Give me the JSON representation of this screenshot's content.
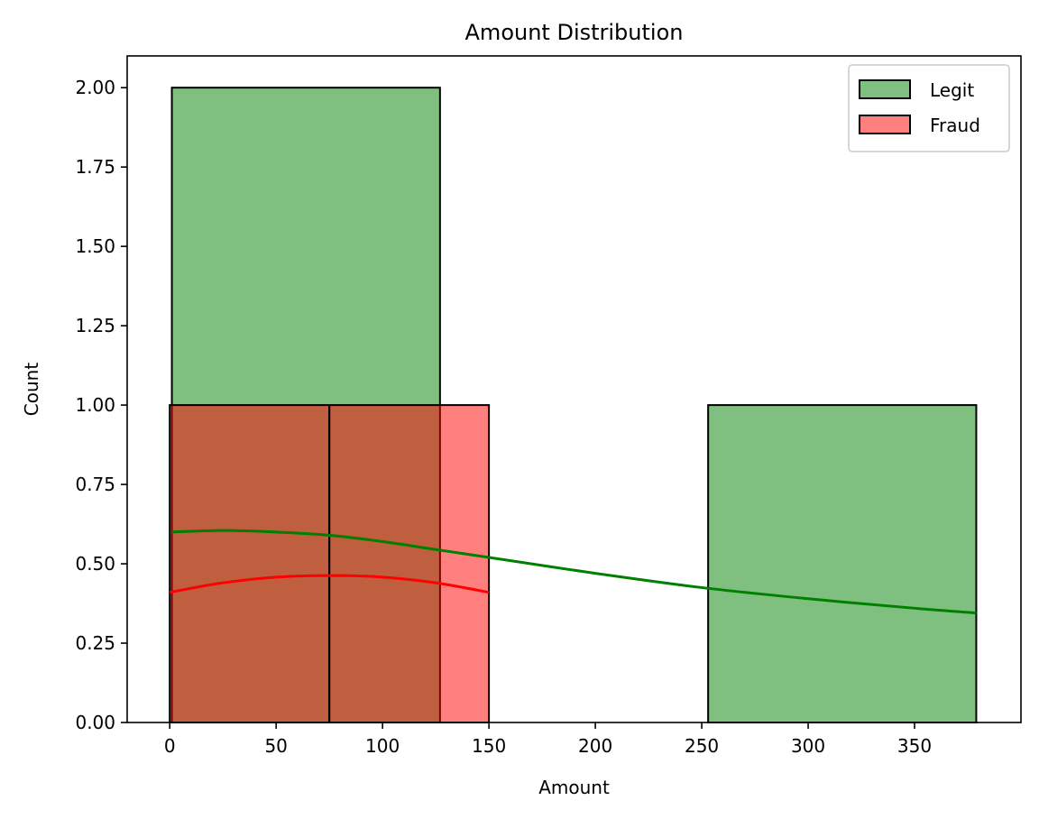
{
  "chart_data": {
    "type": "bar",
    "subtype": "histogram-with-kde",
    "title": "Amount Distribution",
    "xlabel": "Amount",
    "ylabel": "Count",
    "xlim": [
      -20,
      400
    ],
    "ylim": [
      0,
      2.1
    ],
    "xticks": [
      0,
      50,
      100,
      150,
      200,
      250,
      300,
      350
    ],
    "yticks": [
      0,
      0.25,
      0.5,
      0.75,
      1.0,
      1.25,
      1.5,
      1.75,
      2.0
    ],
    "ytick_labels": [
      "0.00",
      "0.25",
      "0.50",
      "0.75",
      "1.00",
      "1.25",
      "1.50",
      "1.75",
      "2.00"
    ],
    "legend_position": "top-right",
    "grid": false,
    "series": [
      {
        "name": "Legit",
        "color": "#008000",
        "bar_alpha": 0.5,
        "bins": [
          {
            "x0": 1,
            "x1": 127,
            "count": 2
          },
          {
            "x0": 127,
            "x1": 253,
            "count": 0
          },
          {
            "x0": 253,
            "x1": 379,
            "count": 1
          }
        ],
        "kde": [
          [
            1,
            0.6
          ],
          [
            25,
            0.605
          ],
          [
            50,
            0.6
          ],
          [
            75,
            0.59
          ],
          [
            100,
            0.57
          ],
          [
            125,
            0.545
          ],
          [
            150,
            0.52
          ],
          [
            200,
            0.47
          ],
          [
            250,
            0.425
          ],
          [
            300,
            0.39
          ],
          [
            350,
            0.36
          ],
          [
            379,
            0.345
          ]
        ]
      },
      {
        "name": "Fraud",
        "color": "#ff0000",
        "bar_alpha": 0.5,
        "bins": [
          {
            "x0": 0,
            "x1": 75,
            "count": 1
          },
          {
            "x0": 75,
            "x1": 150,
            "count": 1
          }
        ],
        "kde": [
          [
            0,
            0.41
          ],
          [
            25,
            0.44
          ],
          [
            50,
            0.458
          ],
          [
            75,
            0.463
          ],
          [
            100,
            0.458
          ],
          [
            125,
            0.44
          ],
          [
            150,
            0.41
          ]
        ]
      }
    ]
  }
}
